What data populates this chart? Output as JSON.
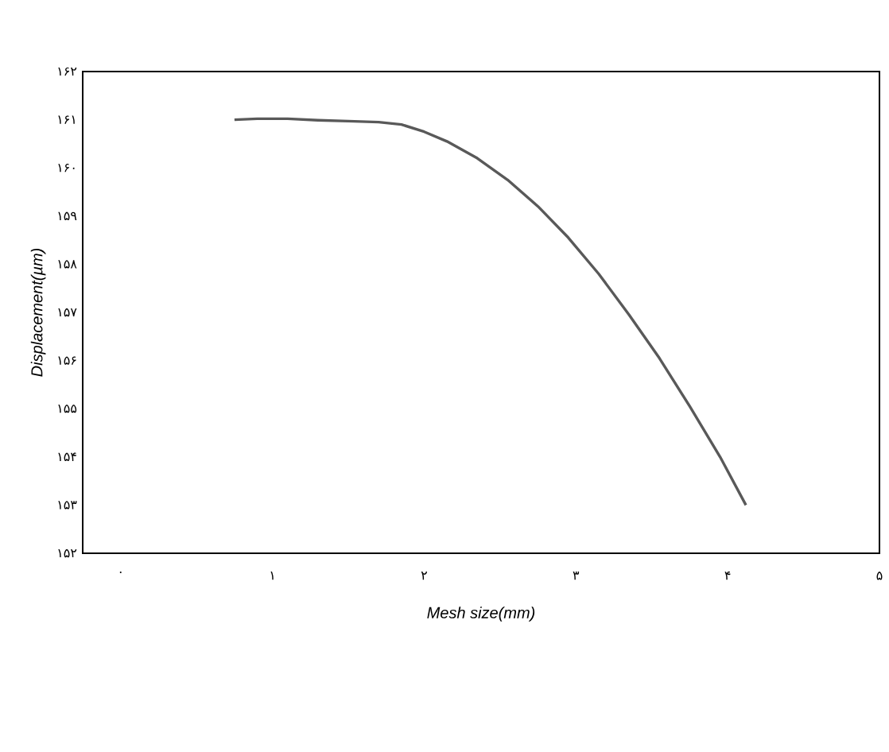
{
  "chart_data": {
    "type": "line",
    "xlabel": "Mesh size(mm)",
    "ylabel": "Displacement(µm)",
    "x": [
      0.75,
      0.9,
      1.1,
      1.3,
      1.5,
      1.7,
      1.85,
      2.0,
      2.15,
      2.35,
      2.55,
      2.75,
      2.95,
      3.15,
      3.35,
      3.55,
      3.75,
      3.95,
      4.12
    ],
    "series": [
      {
        "color": "#595959",
        "values": [
          161.0,
          161.02,
          161.02,
          160.99,
          160.97,
          160.95,
          160.9,
          160.75,
          160.55,
          160.2,
          159.75,
          159.2,
          158.55,
          157.8,
          156.95,
          156.05,
          155.05,
          154.0,
          153.0
        ]
      }
    ],
    "xlim": [
      -0.25,
      5
    ],
    "ylim": [
      152,
      162
    ],
    "xticks": [
      {
        "value": 0,
        "label": "۰"
      },
      {
        "value": 1,
        "label": "۱"
      },
      {
        "value": 2,
        "label": "۲"
      },
      {
        "value": 3,
        "label": "۳"
      },
      {
        "value": 4,
        "label": "۴"
      },
      {
        "value": 5,
        "label": "۵"
      }
    ],
    "yticks": [
      {
        "value": 152,
        "label": "۱۵۲"
      },
      {
        "value": 153,
        "label": "۱۵۳"
      },
      {
        "value": 154,
        "label": "۱۵۴"
      },
      {
        "value": 155,
        "label": "۱۵۵"
      },
      {
        "value": 156,
        "label": "۱۵۶"
      },
      {
        "value": 157,
        "label": "۱۵۷"
      },
      {
        "value": 158,
        "label": "۱۵۸"
      },
      {
        "value": 159,
        "label": "۱۵۹"
      },
      {
        "value": 160,
        "label": "۱۶۰"
      },
      {
        "value": 161,
        "label": "۱۶۱"
      },
      {
        "value": 162,
        "label": "۱۶۲"
      }
    ],
    "grid": false
  }
}
